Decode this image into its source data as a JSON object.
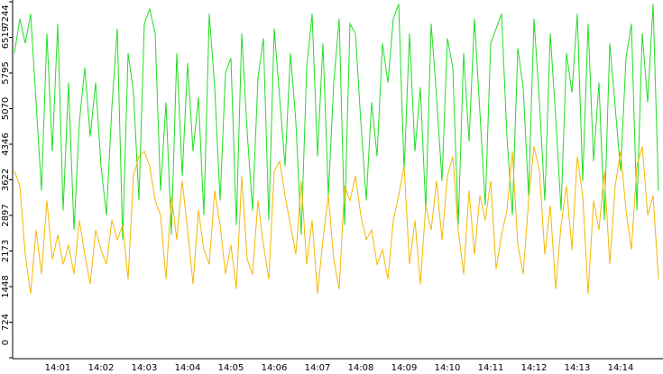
{
  "chart_data": {
    "type": "line",
    "categories": [
      null,
      null,
      null,
      null,
      null,
      null,
      null,
      null,
      "14:01",
      null,
      null,
      null,
      null,
      null,
      null,
      null,
      "14:02",
      null,
      null,
      null,
      null,
      null,
      null,
      null,
      "14:03",
      null,
      null,
      null,
      null,
      null,
      null,
      null,
      "14:04",
      null,
      null,
      null,
      null,
      null,
      null,
      null,
      "14:05",
      null,
      null,
      null,
      null,
      null,
      null,
      null,
      "14:06",
      null,
      null,
      null,
      null,
      null,
      null,
      null,
      "14:07",
      null,
      null,
      null,
      null,
      null,
      null,
      null,
      "14:08",
      null,
      null,
      null,
      null,
      null,
      null,
      null,
      "14:09",
      null,
      null,
      null,
      null,
      null,
      null,
      null,
      "14:10",
      null,
      null,
      null,
      null,
      null,
      null,
      null,
      "14:11",
      null,
      null,
      null,
      null,
      null,
      null,
      null,
      "14:12",
      null,
      null,
      null,
      null,
      null,
      null,
      null,
      "14:13",
      null,
      null,
      null,
      null,
      null,
      null,
      null,
      "14:14",
      null,
      null,
      null,
      null,
      null,
      null,
      null
    ],
    "series": [
      {
        "color": "#22dd22",
        "values": [
          6200,
          6900,
          6400,
          7000,
          5200,
          3400,
          6600,
          4200,
          6800,
          3000,
          5600,
          2600,
          4800,
          5900,
          4500,
          5600,
          3900,
          2900,
          5100,
          6700,
          2400,
          6200,
          5400,
          3200,
          6800,
          7100,
          6600,
          3400,
          5200,
          2500,
          6200,
          3700,
          6000,
          4200,
          5300,
          2900,
          7000,
          5500,
          3200,
          5800,
          6100,
          2700,
          6600,
          4600,
          3000,
          5700,
          6500,
          2800,
          6700,
          5300,
          3900,
          6200,
          4800,
          2500,
          5900,
          7000,
          4100,
          6400,
          3300,
          5600,
          6900,
          2700,
          6800,
          6600,
          4800,
          3200,
          5200,
          4100,
          6400,
          5600,
          6900,
          7200,
          3800,
          6600,
          4200,
          5500,
          3000,
          6800,
          5300,
          3600,
          6500,
          5900,
          2700,
          6200,
          4400,
          6900,
          5000,
          3100,
          6400,
          6700,
          7000,
          4500,
          2900,
          6300,
          5500,
          3300,
          6900,
          5200,
          3200,
          6600,
          4900,
          3000,
          6200,
          5400,
          7000,
          3600,
          6800,
          4000,
          5600,
          2800,
          6400,
          5100,
          3800,
          6100,
          6800,
          3000,
          6600,
          5200,
          7200,
          3400
        ]
      },
      {
        "color": "#f5b800",
        "values": [
          3800,
          3500,
          2100,
          1300,
          2600,
          1700,
          3200,
          2000,
          2500,
          1900,
          2300,
          1700,
          2800,
          2100,
          1500,
          2600,
          2200,
          1900,
          2800,
          2400,
          2700,
          1600,
          3700,
          4100,
          4200,
          3900,
          3200,
          2900,
          1600,
          3300,
          2400,
          3600,
          2600,
          1500,
          3000,
          2200,
          1900,
          3400,
          2700,
          1700,
          2300,
          1400,
          3700,
          2000,
          1700,
          3200,
          2300,
          1600,
          3800,
          4000,
          3300,
          2700,
          2100,
          3600,
          1900,
          2800,
          1300,
          2400,
          3300,
          2000,
          1400,
          3500,
          3200,
          3700,
          2900,
          2400,
          2600,
          1900,
          2200,
          1600,
          2800,
          3300,
          3900,
          1900,
          2800,
          1500,
          3100,
          2600,
          3600,
          2400,
          3700,
          4100,
          2600,
          1700,
          3400,
          2100,
          3300,
          2800,
          3600,
          1800,
          2500,
          3000,
          4200,
          2300,
          1700,
          3200,
          4300,
          3800,
          2100,
          3100,
          1400,
          2700,
          3500,
          2200,
          4100,
          3300,
          1300,
          3200,
          2600,
          3800,
          1900,
          3500,
          4200,
          3000,
          2200,
          3900,
          4300,
          2900,
          3300,
          1600
        ]
      }
    ],
    "ylim": [
      0,
      7244
    ],
    "yticks": [
      0,
      724,
      1448,
      2173,
      2897,
      3622,
      4346,
      5070,
      5795,
      6519,
      7244
    ]
  }
}
